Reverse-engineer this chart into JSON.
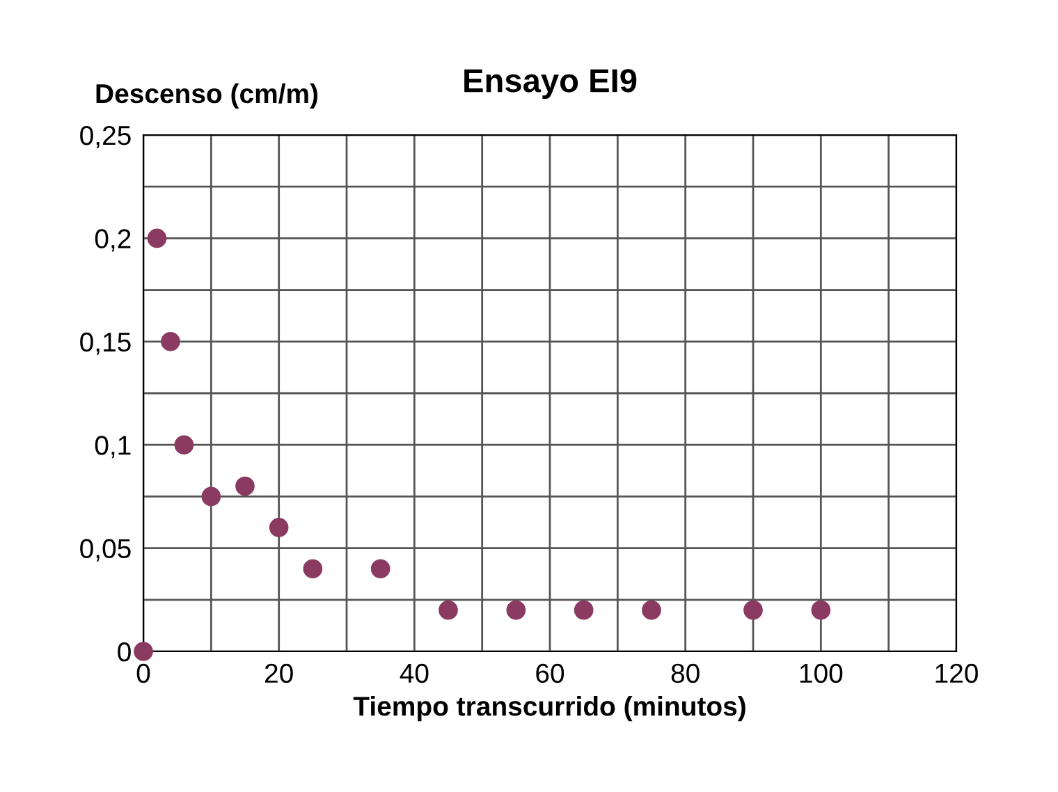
{
  "chart_data": {
    "type": "scatter",
    "title": "Ensayo EI9",
    "ylabel": "Descenso (cm/m)",
    "xlabel": "Tiempo transcurrido (minutos)",
    "x": [
      0,
      2,
      4,
      6,
      10,
      15,
      20,
      25,
      35,
      45,
      55,
      65,
      75,
      90,
      100
    ],
    "series": [
      {
        "color": "#8b3a62",
        "values": [
          0,
          0.2,
          0.15,
          0.1,
          0.075,
          0.08,
          0.06,
          0.04,
          0.04,
          0.02,
          0.02,
          0.02,
          0.02,
          0.02,
          0.02
        ]
      }
    ],
    "xlim": [
      0,
      120
    ],
    "ylim": [
      0,
      0.25
    ],
    "xticks": [
      0,
      {
        "value": 10,
        "label": null
      },
      20,
      {
        "value": 30,
        "label": null
      },
      40,
      {
        "value": 50,
        "label": null
      },
      60,
      {
        "value": 70,
        "label": null
      },
      80,
      {
        "value": 90,
        "label": null
      },
      100,
      {
        "value": 110,
        "label": null
      },
      120
    ],
    "yticks": [
      {
        "value": 0,
        "label": "0"
      },
      {
        "value": 0.025,
        "label": null
      },
      {
        "value": 0.05,
        "label": "0,05"
      },
      {
        "value": 0.075,
        "label": null
      },
      {
        "value": 0.1,
        "label": "0,1"
      },
      {
        "value": 0.125,
        "label": null
      },
      {
        "value": 0.15,
        "label": "0,15"
      },
      {
        "value": 0.175,
        "label": null
      },
      {
        "value": 0.2,
        "label": "0,2"
      },
      {
        "value": 0.225,
        "label": null
      },
      {
        "value": 0.25,
        "label": "0,25"
      }
    ],
    "grid": true,
    "marker": "circle",
    "legend": false
  }
}
